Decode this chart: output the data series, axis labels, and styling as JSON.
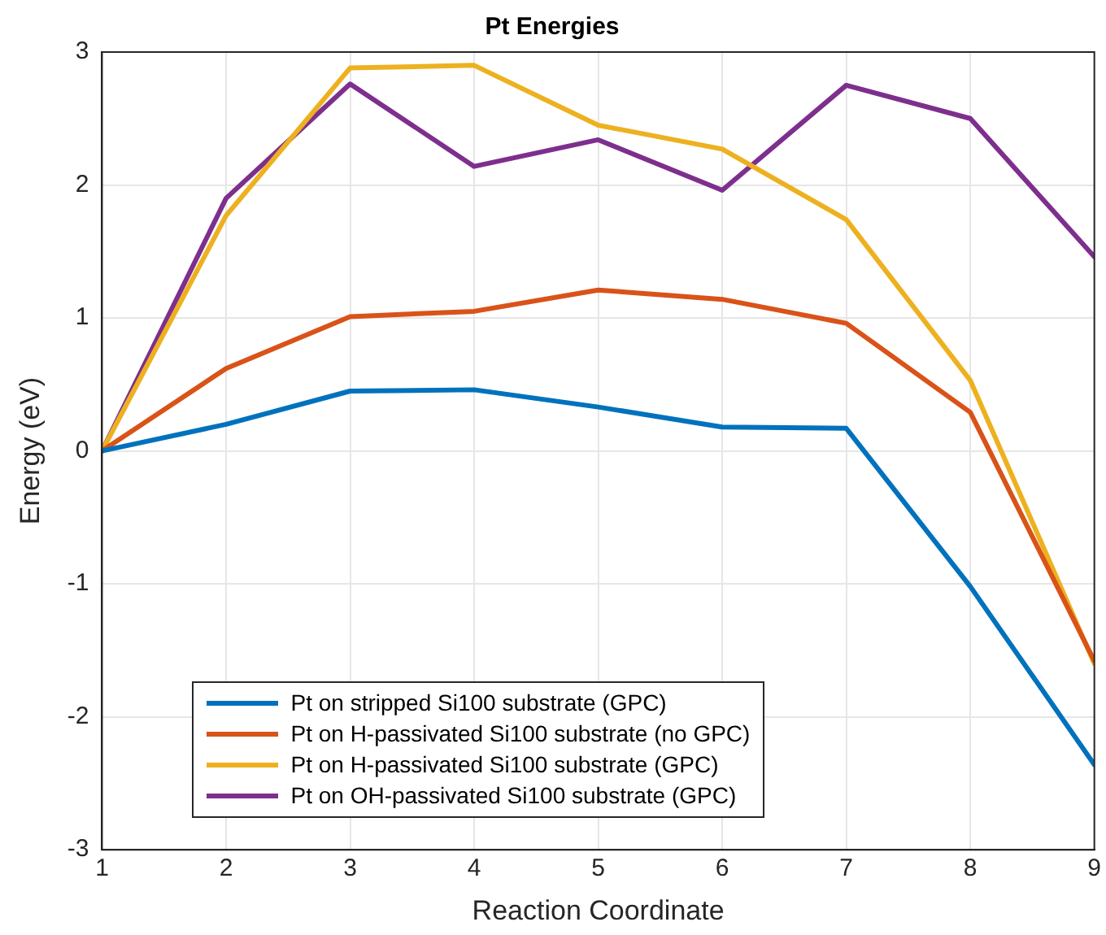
{
  "chart_data": {
    "type": "line",
    "title": "Pt Energies",
    "xlabel": "Reaction Coordinate",
    "ylabel": "Energy (eV)",
    "x": [
      1,
      2,
      3,
      4,
      5,
      6,
      7,
      8,
      9
    ],
    "series": [
      {
        "name": "Pt on stripped Si100 substrate (GPC)",
        "color": "#0072bd",
        "values": [
          0,
          0.2,
          0.45,
          0.46,
          0.33,
          0.18,
          0.17,
          -1.02,
          -2.36
        ]
      },
      {
        "name": "Pt on H-passivated Si100 substrate (no GPC)",
        "color": "#d95319",
        "values": [
          0,
          0.62,
          1.01,
          1.05,
          1.21,
          1.14,
          0.96,
          0.29,
          -1.58
        ]
      },
      {
        "name": "Pt on H-passivated Si100 substrate (GPC)",
        "color": "#edb120",
        "values": [
          0,
          1.77,
          2.88,
          2.9,
          2.45,
          2.27,
          1.74,
          0.53,
          -1.6
        ]
      },
      {
        "name": "Pt on OH-passivated Si100 substrate (GPC)",
        "color": "#7e2f8e",
        "values": [
          0,
          1.9,
          2.76,
          2.14,
          2.34,
          1.96,
          2.75,
          2.5,
          1.46
        ]
      }
    ],
    "xlim": [
      1,
      9
    ],
    "xticks": [
      1,
      2,
      3,
      4,
      5,
      6,
      7,
      8,
      9
    ],
    "ylim": [
      -3,
      3
    ],
    "yticks": [
      -3,
      -2,
      -1,
      0,
      1,
      2,
      3
    ],
    "grid": true,
    "legend": "bottom left",
    "marker": "none",
    "line_style": "solid"
  }
}
